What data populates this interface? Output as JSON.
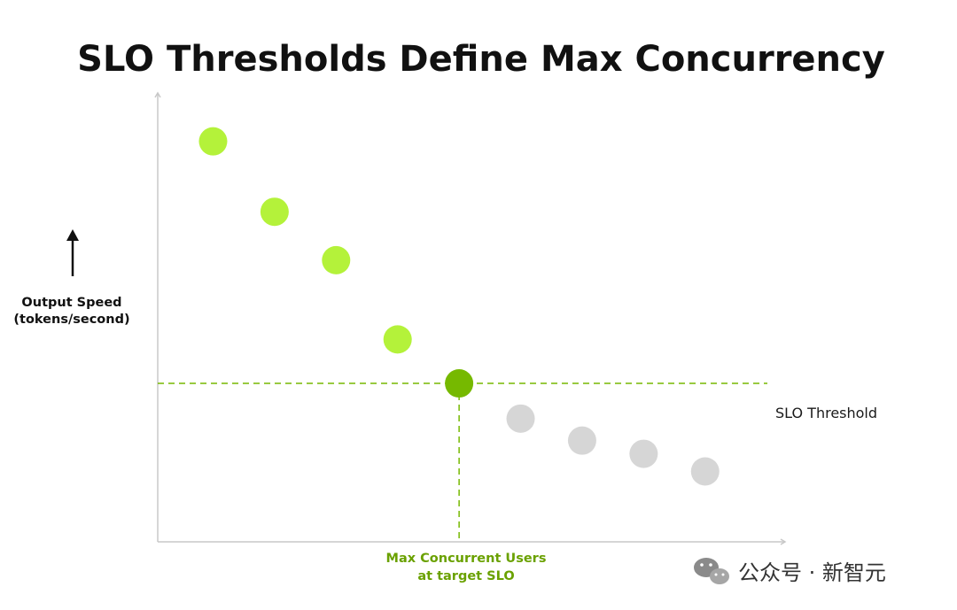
{
  "chart_data": {
    "type": "scatter",
    "title": "SLO Thresholds Define Max Concurrency",
    "ylabel": [
      "Output Speed",
      "(tokens/second)"
    ],
    "xlabel": "",
    "axis_ticks": false,
    "grid": false,
    "points": [
      {
        "x": 1,
        "y": 9.1,
        "status": "meets"
      },
      {
        "x": 2,
        "y": 7.5,
        "status": "meets"
      },
      {
        "x": 3,
        "y": 6.4,
        "status": "meets"
      },
      {
        "x": 4,
        "y": 4.6,
        "status": "meets"
      },
      {
        "x": 5,
        "y": 3.6,
        "status": "max"
      },
      {
        "x": 6,
        "y": 2.8,
        "status": "below"
      },
      {
        "x": 7,
        "y": 2.3,
        "status": "below"
      },
      {
        "x": 8,
        "y": 2.0,
        "status": "below"
      },
      {
        "x": 9,
        "y": 1.6,
        "status": "below"
      }
    ],
    "slo_threshold": {
      "y": 3.6,
      "label": "SLO Threshold"
    },
    "max_concurrency_marker": {
      "x": 5,
      "label": [
        "Max Concurrent Users",
        "at target SLO"
      ]
    },
    "colors": {
      "meets": "#b4f23a",
      "max": "#76b900",
      "below": "#d6d6d6",
      "guide": "#76b900",
      "axis": "#c8c8c8",
      "marker_label": "#6aa100"
    }
  },
  "watermark": {
    "text": "公众号 · 新智元",
    "icon": "wechat-icon"
  }
}
